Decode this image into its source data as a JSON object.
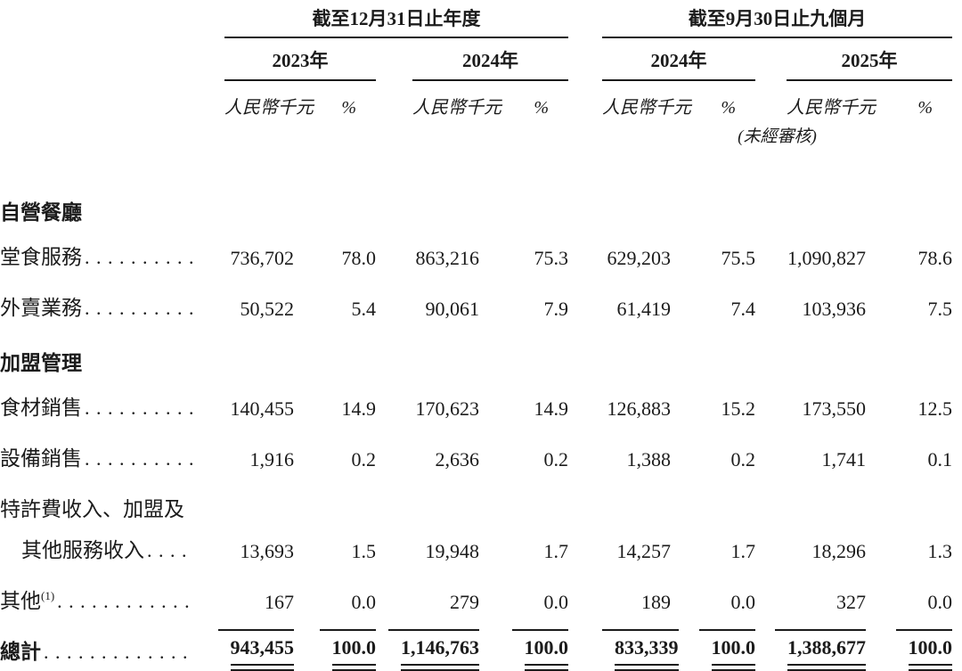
{
  "ink_color": "#1b1b1b",
  "background_color": "#ffffff",
  "table": {
    "groups": [
      {
        "title": "截至12月31日止年度",
        "years": [
          "2023年",
          "2024年"
        ]
      },
      {
        "title": "截至9月30日止九個月",
        "years": [
          "2024年",
          "2025年"
        ],
        "note": "(未經審核)"
      }
    ],
    "col_headers": {
      "amount": "人民幣千元",
      "percent": "%"
    },
    "rows": [
      {
        "type": "section",
        "label": "自營餐廳"
      },
      {
        "type": "item",
        "label": "堂食服務",
        "values": [
          "736,702",
          "78.0",
          "863,216",
          "75.3",
          "629,203",
          "75.5",
          "1,090,827",
          "78.6"
        ]
      },
      {
        "type": "item",
        "label": "外賣業務",
        "values": [
          "50,522",
          "5.4",
          "90,061",
          "7.9",
          "61,419",
          "7.4",
          "103,936",
          "7.5"
        ]
      },
      {
        "type": "section",
        "label": "加盟管理"
      },
      {
        "type": "item",
        "label": "食材銷售",
        "values": [
          "140,455",
          "14.9",
          "170,623",
          "14.9",
          "126,883",
          "15.2",
          "173,550",
          "12.5"
        ]
      },
      {
        "type": "item",
        "label": "設備銷售",
        "values": [
          "1,916",
          "0.2",
          "2,636",
          "0.2",
          "1,388",
          "0.2",
          "1,741",
          "0.1"
        ]
      },
      {
        "type": "wrap",
        "label": "特許費收入、加盟及"
      },
      {
        "type": "item",
        "label": "其他服務收入",
        "indent": true,
        "values": [
          "13,693",
          "1.5",
          "19,948",
          "1.7",
          "14,257",
          "1.7",
          "18,296",
          "1.3"
        ]
      },
      {
        "type": "item",
        "label": "其他",
        "sup": "(1)",
        "values": [
          "167",
          "0.0",
          "279",
          "0.0",
          "189",
          "0.0",
          "327",
          "0.0"
        ]
      },
      {
        "type": "total",
        "label": "總計",
        "values": [
          "943,455",
          "100.0",
          "1,146,763",
          "100.0",
          "833,339",
          "100.0",
          "1,388,677",
          "100.0"
        ]
      }
    ]
  }
}
